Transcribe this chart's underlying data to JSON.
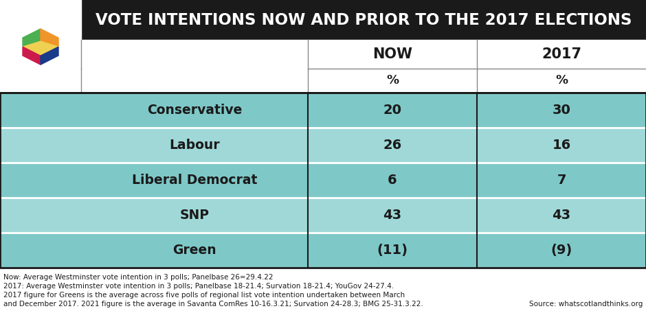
{
  "title": "VOTE INTENTIONS NOW AND PRIOR TO THE 2017 ELECTIONS",
  "col_headers": [
    "NOW",
    "2017"
  ],
  "col_subheaders": [
    "%",
    "%"
  ],
  "parties": [
    "Conservative",
    "Labour",
    "Liberal Democrat",
    "SNP",
    "Green"
  ],
  "now_values": [
    "20",
    "26",
    "6",
    "43",
    "(11)"
  ],
  "prior_values": [
    "30",
    "16",
    "7",
    "43",
    "(9)"
  ],
  "header_bg": "#1a1a1a",
  "header_text_color": "#ffffff",
  "row_colors": [
    "#7fc8c8",
    "#a0d8d8",
    "#7fc8c8",
    "#a0d8d8",
    "#7fc8c8"
  ],
  "separator_white": "#ffffff",
  "separator_dark": "#1a1a1a",
  "separator_gray": "#888888",
  "footer_lines": [
    "Now: Average Westminster vote intention in 3 polls; Panelbase 26=29.4.22",
    "2017: Average Westminster vote intention in 3 polls; Panelbase 18-21.4; Survation 18-21.4; YouGov 24-27.4.",
    "2017 figure for Greens is the average across five polls of regional list vote intention undertaken between March",
    "and December 2017. 2021 figure is the average in Savanta ComRes 10-16.3.21; Survation 24-28.3; BMG 25-31.3.22."
  ],
  "footer_source": "Source: whatscotlandthinks.org",
  "logo": {
    "green": "#4caf50",
    "orange": "#f0952a",
    "yellow": "#f0d050",
    "red": "#cc1a4a",
    "blue": "#1a3a8a"
  }
}
